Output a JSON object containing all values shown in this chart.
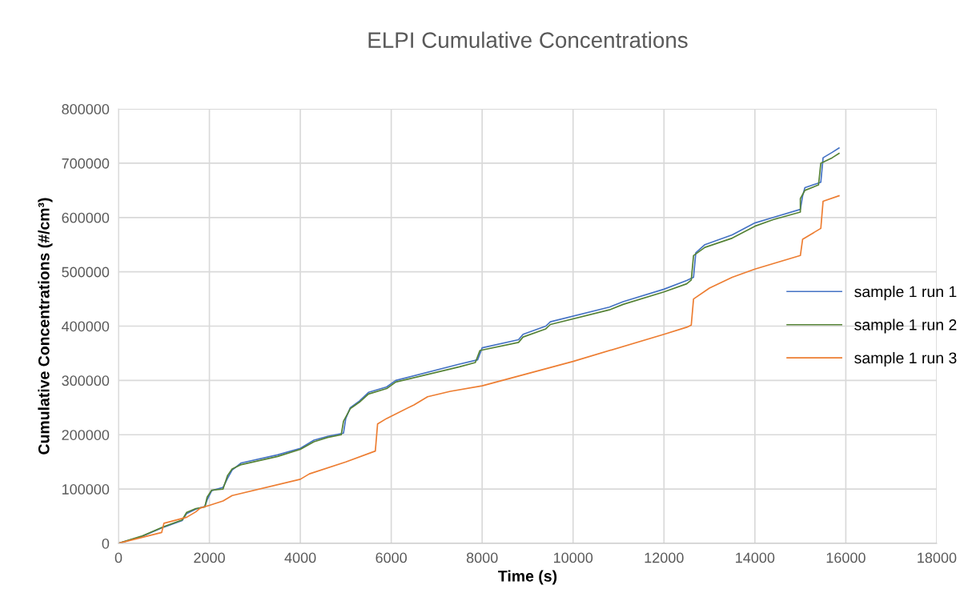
{
  "chart_data": {
    "type": "line",
    "title": "ELPI Cumulative Concentrations",
    "xlabel": "Time (s)",
    "ylabel": "Cumulative Concentrations (#/cm³)",
    "xlim": [
      0,
      18000
    ],
    "xticks": [
      0,
      2000,
      4000,
      6000,
      8000,
      10000,
      12000,
      14000,
      16000,
      18000
    ],
    "ylim": [
      0,
      800000
    ],
    "yticks": [
      0,
      100000,
      200000,
      300000,
      400000,
      500000,
      600000,
      700000,
      800000
    ],
    "grid": true,
    "legend": "right",
    "marker": "none",
    "line_style": "solid",
    "series": [
      {
        "name": "sample 1 run 1",
        "color": "#4472c4",
        "x": [
          0,
          500,
          1000,
          1400,
          1500,
          1700,
          1900,
          1950,
          2050,
          2300,
          2400,
          2500,
          2700,
          3500,
          4000,
          4300,
          4600,
          4950,
          5000,
          5100,
          5300,
          5500,
          5900,
          6100,
          7500,
          7900,
          8000,
          8800,
          8900,
          9400,
          9500,
          10800,
          11100,
          12000,
          12500,
          12650,
          12700,
          12900,
          13500,
          14000,
          14400,
          15000,
          15050,
          15100,
          15450,
          15500,
          15700,
          15850
        ],
        "values": [
          0,
          12000,
          30000,
          42000,
          55000,
          63000,
          68000,
          80000,
          97000,
          103000,
          120000,
          135000,
          148000,
          163000,
          175000,
          190000,
          197000,
          203000,
          230000,
          250000,
          262000,
          278000,
          288000,
          300000,
          330000,
          338000,
          360000,
          375000,
          385000,
          400000,
          408000,
          435000,
          445000,
          468000,
          484000,
          490000,
          535000,
          550000,
          568000,
          590000,
          600000,
          615000,
          640000,
          655000,
          665000,
          710000,
          720000,
          728000
        ]
      },
      {
        "name": "sample 1 run 2",
        "color": "#548235",
        "x": [
          0,
          500,
          1000,
          1400,
          1500,
          1700,
          1900,
          1950,
          2050,
          2300,
          2400,
          2500,
          2700,
          3500,
          4000,
          4300,
          4600,
          4900,
          4950,
          5100,
          5300,
          5500,
          5900,
          6100,
          7500,
          7850,
          7950,
          8800,
          8900,
          9400,
          9500,
          10800,
          11100,
          12000,
          12500,
          12600,
          12650,
          12900,
          13500,
          14000,
          14400,
          15000,
          15000,
          15100,
          15400,
          15450,
          15700,
          15850
        ],
        "values": [
          0,
          13000,
          31000,
          43000,
          57000,
          64000,
          67000,
          85000,
          98000,
          100000,
          125000,
          137000,
          145000,
          160000,
          173000,
          187000,
          195000,
          200000,
          225000,
          248000,
          260000,
          275000,
          285000,
          297000,
          325000,
          333000,
          355000,
          370000,
          380000,
          395000,
          403000,
          430000,
          440000,
          463000,
          478000,
          485000,
          530000,
          545000,
          562000,
          584000,
          596000,
          610000,
          635000,
          650000,
          660000,
          700000,
          710000,
          718000
        ]
      },
      {
        "name": "sample 1 run 3",
        "color": "#ed7d31",
        "x": [
          0,
          950,
          1000,
          1500,
          1700,
          1800,
          2000,
          2300,
          2500,
          4000,
          4200,
          5000,
          5650,
          5700,
          5900,
          6500,
          6800,
          7300,
          8000,
          10000,
          12000,
          12500,
          12600,
          12650,
          13000,
          13500,
          14000,
          15000,
          15050,
          15450,
          15500,
          15850
        ],
        "values": [
          0,
          20000,
          37000,
          48000,
          58000,
          65000,
          70000,
          78000,
          88000,
          118000,
          128000,
          150000,
          170000,
          220000,
          230000,
          255000,
          270000,
          280000,
          290000,
          335000,
          385000,
          398000,
          402000,
          450000,
          470000,
          490000,
          505000,
          530000,
          560000,
          580000,
          630000,
          640000
        ]
      }
    ]
  }
}
